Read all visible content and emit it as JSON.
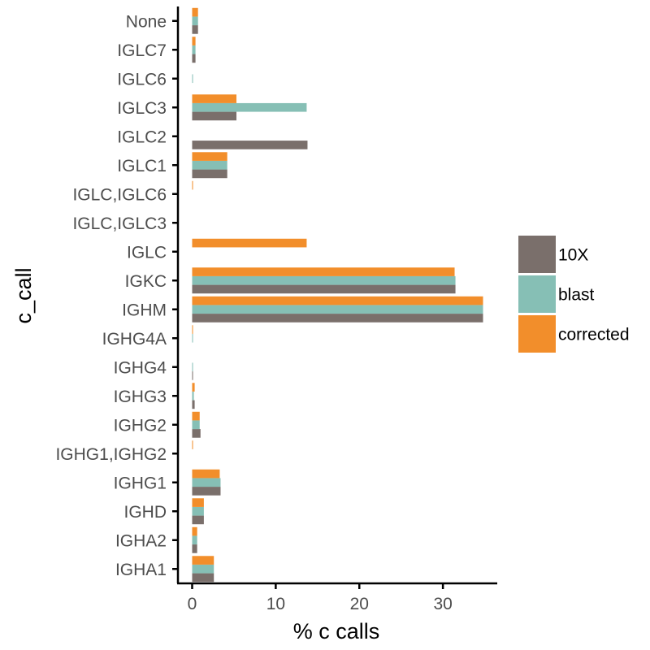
{
  "chart_data": {
    "type": "bar",
    "orientation": "horizontal",
    "xlabel": "% c calls",
    "ylabel": "c_call",
    "xlim": [
      -1.7,
      36.5
    ],
    "xticks": [
      0,
      10,
      20,
      30
    ],
    "categories": [
      "IGHA1",
      "IGHA2",
      "IGHD",
      "IGHG1",
      "IGHG1,IGHG2",
      "IGHG2",
      "IGHG3",
      "IGHG4",
      "IGHG4A",
      "IGHM",
      "IGKC",
      "IGLC",
      "IGLC,IGLC3",
      "IGLC,IGLC6",
      "IGLC1",
      "IGLC2",
      "IGLC3",
      "IGLC6",
      "IGLC7",
      "None"
    ],
    "series": [
      {
        "name": "10X",
        "color": "#7a6f6b",
        "values": [
          2.6,
          0.6,
          1.4,
          3.4,
          0.0,
          1.0,
          0.3,
          0.1,
          0.0,
          34.8,
          31.5,
          0.0,
          0.0,
          0.0,
          4.2,
          13.8,
          5.3,
          0.0,
          0.4,
          0.7
        ]
      },
      {
        "name": "blast",
        "color": "#86bfb5",
        "values": [
          2.6,
          0.6,
          1.4,
          3.4,
          0.0,
          0.9,
          0.2,
          0.1,
          0.1,
          34.8,
          31.5,
          0.0,
          0.0,
          0.0,
          4.2,
          0.0,
          13.7,
          0.1,
          0.4,
          0.7
        ]
      },
      {
        "name": "corrected",
        "color": "#f28e2b",
        "values": [
          2.6,
          0.6,
          1.4,
          3.3,
          0.1,
          0.9,
          0.3,
          0.0,
          0.1,
          34.8,
          31.4,
          13.7,
          0.0,
          0.1,
          4.2,
          0.0,
          5.3,
          0.0,
          0.4,
          0.7
        ]
      }
    ],
    "legend_position": "right",
    "grid": false
  }
}
